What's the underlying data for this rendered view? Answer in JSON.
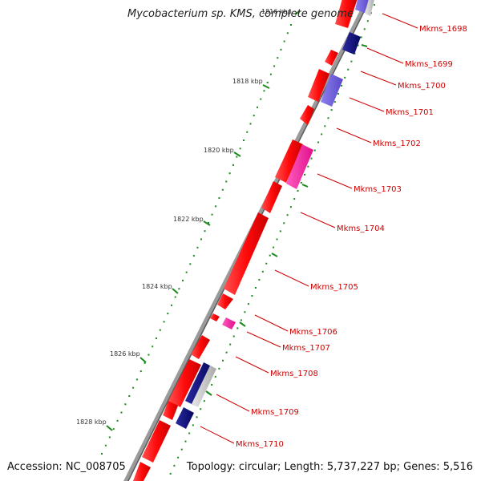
{
  "title": "Mycobacterium sp. KMS, complete genome",
  "footer": {
    "accession": "Accession: NC_008705",
    "info": "Topology: circular; Length: 5,737,227 bp; Genes: 5,516"
  },
  "colors": {
    "forward_gene": "#ff1010",
    "reverse_gene_dark": "#0a0a80",
    "reverse_gene_light": "#7766dd",
    "pink_gene": "#ff2fa0",
    "backbone": "#888888",
    "scale_tick": "#1a8a1a",
    "label_line": "#cc0000"
  },
  "scale_labels": [
    "1816 kbp",
    "1818 kbp",
    "1820 kbp",
    "1822 kbp",
    "1824 kbp",
    "1826 kbp",
    "1828 kbp"
  ],
  "genes": [
    "Mkms_1698",
    "Mkms_1699",
    "Mkms_1700",
    "Mkms_1701",
    "Mkms_1702",
    "Mkms_1703",
    "Mkms_1704",
    "Mkms_1705",
    "Mkms_1706",
    "Mkms_1707",
    "Mkms_1708",
    "Mkms_1709",
    "Mkms_1710"
  ]
}
